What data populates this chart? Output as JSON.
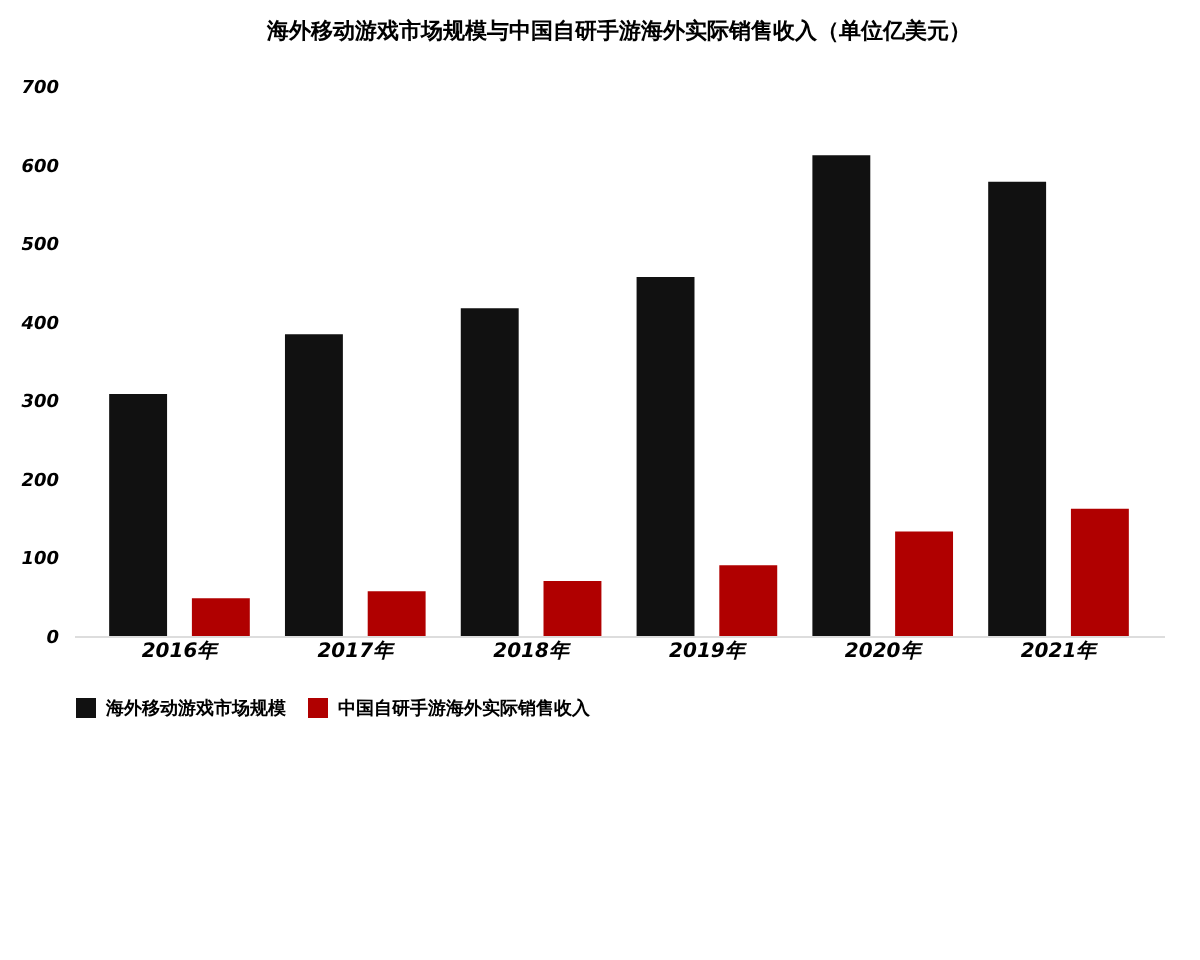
{
  "chart_data": {
    "type": "bar",
    "title": "海外移动游戏市场规模与中国自研手游海外实际销售收入（单位亿美元）",
    "categories": [
      "2016年",
      "2017年",
      "2018年",
      "2019年",
      "2020年",
      "2021年"
    ],
    "series": [
      {
        "name": "海外移动游戏市场规模",
        "color": "#111111",
        "values": [
          308,
          384,
          417,
          457,
          612,
          578
        ]
      },
      {
        "name": "中国自研手游海外实际销售收入",
        "color": "#b00000",
        "values": [
          48,
          57,
          70,
          90,
          133,
          162
        ]
      }
    ],
    "ylim": [
      0,
      700
    ],
    "yticks": [
      0,
      100,
      200,
      300,
      400,
      500,
      600,
      700
    ],
    "grid": false,
    "legend": "bottom"
  }
}
